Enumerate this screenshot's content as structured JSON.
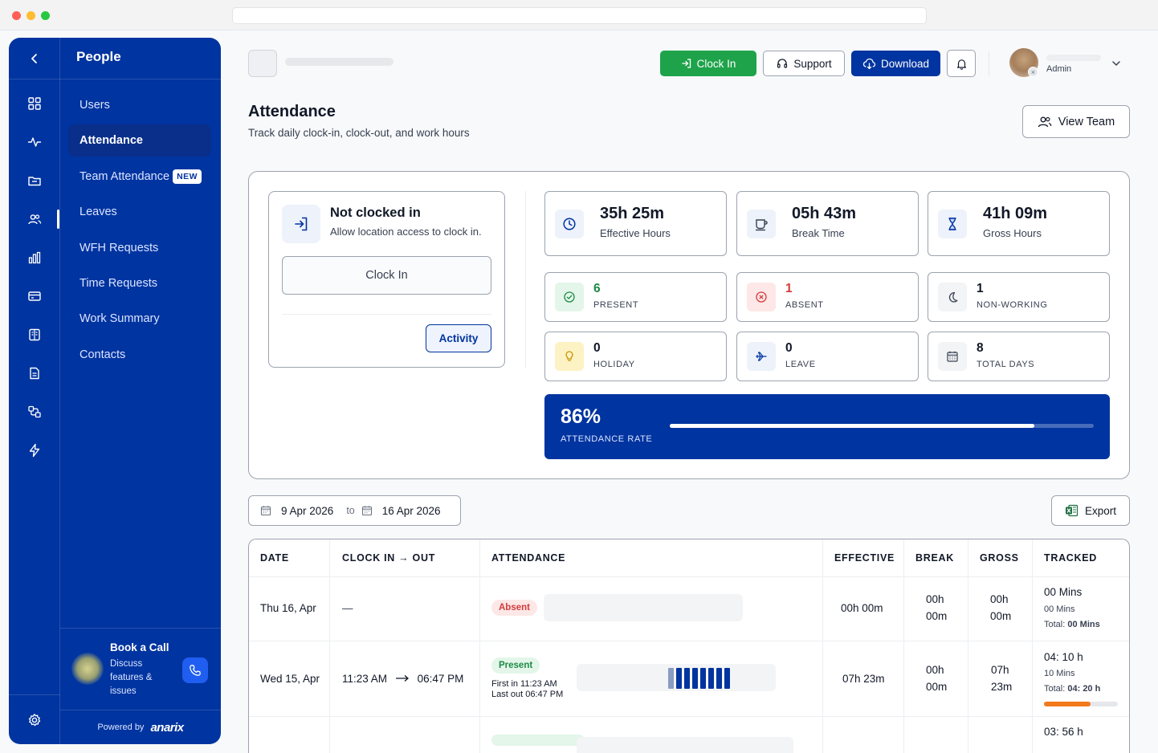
{
  "sidebar": {
    "title": "People",
    "items": [
      {
        "label": "Users"
      },
      {
        "label": "Attendance"
      },
      {
        "label": "Team Attendance",
        "badge": "NEW"
      },
      {
        "label": "Leaves"
      },
      {
        "label": "WFH Requests"
      },
      {
        "label": "Time Requests"
      },
      {
        "label": "Work Summary"
      },
      {
        "label": "Contacts"
      }
    ],
    "rail_icons": [
      "grid-icon",
      "activity-icon",
      "folder-icon",
      "users-icon",
      "bar-chart-icon",
      "card-icon",
      "book-icon",
      "document-icon",
      "flow-icon",
      "lightning-icon"
    ],
    "book_call": {
      "title": "Book a Call",
      "desc": "Discuss features & issues"
    },
    "powered_by": "Powered by",
    "brand": "anarix"
  },
  "header": {
    "clock_in": "Clock In",
    "support": "Support",
    "download": "Download",
    "user_role": "Admin"
  },
  "page": {
    "title": "Attendance",
    "subtitle": "Track daily clock-in, clock-out, and work hours",
    "view_team": "View Team"
  },
  "clock_card": {
    "status": "Not clocked in",
    "hint": "Allow location access to clock in.",
    "button": "Clock In",
    "activity": "Activity"
  },
  "hours": {
    "effective": {
      "value": "35h 25m",
      "label": "Effective Hours"
    },
    "break": {
      "value": "05h 43m",
      "label": "Break Time"
    },
    "gross": {
      "value": "41h 09m",
      "label": "Gross Hours"
    }
  },
  "counts": {
    "present": {
      "value": "6",
      "label": "PRESENT"
    },
    "absent": {
      "value": "1",
      "label": "ABSENT"
    },
    "nonworking": {
      "value": "1",
      "label": "NON-WORKING"
    },
    "holiday": {
      "value": "0",
      "label": "HOLIDAY"
    },
    "leave": {
      "value": "0",
      "label": "LEAVE"
    },
    "total": {
      "value": "8",
      "label": "TOTAL DAYS"
    }
  },
  "rate": {
    "value": "86%",
    "label": "ATTENDANCE RATE",
    "fraction": 0.86
  },
  "filter": {
    "from": "9 Apr 2026",
    "to_label": "to",
    "to": "16 Apr 2026",
    "export": "Export"
  },
  "table": {
    "headers": [
      "DATE",
      "CLOCK IN → OUT",
      "ATTENDANCE",
      "EFFECTIVE",
      "BREAK",
      "GROSS",
      "TRACKED"
    ],
    "rows": [
      {
        "date": "Thu 16, Apr",
        "clock": "—",
        "status": "Absent",
        "effective": "00h 00m",
        "break_h": "00h",
        "break_m": "00m",
        "gross_h": "00h",
        "gross_m": "00m",
        "tracked": "00 Mins",
        "tracked_sub": "00 Mins",
        "total_label": "Total:",
        "total": "00 Mins"
      },
      {
        "date": "Wed 15, Apr",
        "clock_in": "11:23 AM",
        "clock_out": "06:47 PM",
        "status": "Present",
        "first_in": "First in 11:23 AM",
        "last_out": "Last out 06:47 PM",
        "effective": "07h 23m",
        "break_h": "00h",
        "break_m": "00m",
        "gross_h": "07h",
        "gross_m": "23m",
        "tracked": "04: 10 h",
        "tracked_sub": "10 Mins",
        "total_label": "Total:",
        "total": "04: 20 h",
        "tracked_fraction": 0.63
      },
      {
        "tracked": "03: 56 h"
      }
    ]
  },
  "colors": {
    "primary": "#0034a0",
    "success": "#1ea34a",
    "danger": "#d33b3b",
    "accent": "#f27a1a"
  }
}
